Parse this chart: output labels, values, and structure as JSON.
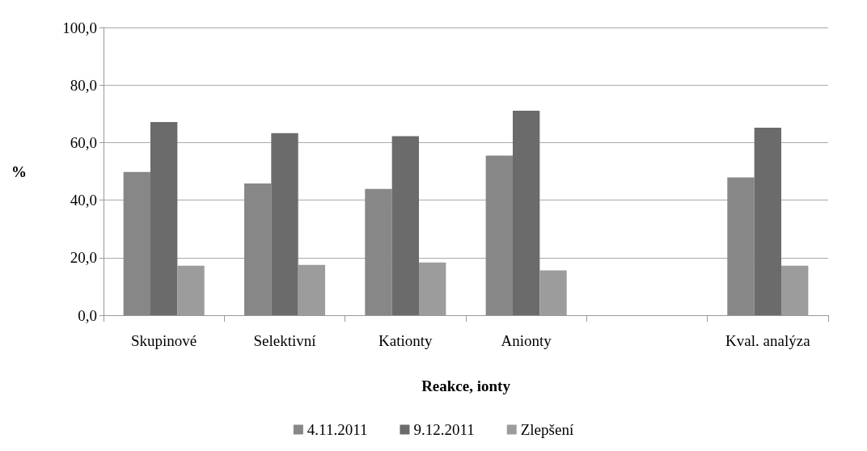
{
  "chart_data": {
    "type": "bar",
    "xlabel": "Reakce, ionty",
    "ylabel": "%",
    "categories": [
      "Skupinové",
      "Selektivní",
      "Kationty",
      "Anionty",
      null,
      "Kval. analýza"
    ],
    "series": [
      {
        "name": "4.11.2011",
        "color": "#878787",
        "values": [
          49.8,
          45.8,
          43.9,
          55.5,
          null,
          47.9
        ]
      },
      {
        "name": "9.12.2011",
        "color": "#6b6b6b",
        "values": [
          67.1,
          63.3,
          62.2,
          71.1,
          null,
          65.2
        ]
      },
      {
        "name": "Zlepšení",
        "color": "#9c9c9c",
        "values": [
          17.2,
          17.5,
          18.3,
          15.6,
          null,
          17.2
        ]
      }
    ],
    "ylim": [
      0,
      100
    ],
    "yticks": [
      {
        "value": 0,
        "label": "0,0"
      },
      {
        "value": 20,
        "label": "20,0"
      },
      {
        "value": 40,
        "label": "40,0"
      },
      {
        "value": 60,
        "label": "60,0"
      },
      {
        "value": 80,
        "label": "80,0"
      },
      {
        "value": 100,
        "label": "100,0"
      }
    ],
    "grid": "y",
    "legend": "bottom"
  }
}
